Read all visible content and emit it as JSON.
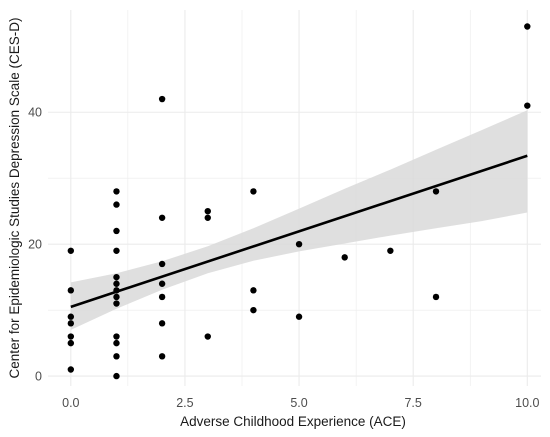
{
  "chart_data": {
    "type": "scatter",
    "xlabel": "Adverse Childhood Experience (ACE)",
    "ylabel": "Center for Epidemiologic Studies Depression Scale (CES-D)",
    "xlim": [
      -0.5,
      10.3
    ],
    "ylim": [
      -1.5,
      55.5
    ],
    "x_ticks": [
      0.0,
      2.5,
      5.0,
      7.5,
      10.0
    ],
    "x_tick_labels": [
      "0.0",
      "2.5",
      "5.0",
      "7.5",
      "10.0"
    ],
    "y_ticks": [
      0,
      20,
      40
    ],
    "y_tick_labels": [
      "0",
      "20",
      "40"
    ],
    "grid": true,
    "legend": "none",
    "points": [
      [
        0,
        19
      ],
      [
        0,
        13
      ],
      [
        0,
        9
      ],
      [
        0,
        8
      ],
      [
        0,
        6
      ],
      [
        0,
        5
      ],
      [
        0,
        1
      ],
      [
        1,
        28
      ],
      [
        1,
        26
      ],
      [
        1,
        22
      ],
      [
        1,
        19
      ],
      [
        1,
        15
      ],
      [
        1,
        14
      ],
      [
        1,
        13
      ],
      [
        1,
        12
      ],
      [
        1,
        11
      ],
      [
        1,
        6
      ],
      [
        1,
        5
      ],
      [
        1,
        3
      ],
      [
        1,
        0
      ],
      [
        2,
        42
      ],
      [
        2,
        24
      ],
      [
        2,
        17
      ],
      [
        2,
        14
      ],
      [
        2,
        12
      ],
      [
        2,
        8
      ],
      [
        2,
        3
      ],
      [
        3,
        25
      ],
      [
        3,
        24
      ],
      [
        3,
        6
      ],
      [
        4,
        28
      ],
      [
        4,
        13
      ],
      [
        4,
        10
      ],
      [
        5,
        20
      ],
      [
        5,
        9
      ],
      [
        6,
        18
      ],
      [
        7,
        19
      ],
      [
        8,
        28
      ],
      [
        8,
        12
      ],
      [
        10,
        53
      ],
      [
        10,
        41
      ]
    ],
    "trend_line": {
      "type": "linear",
      "x": [
        0,
        10
      ],
      "y": [
        10.5,
        33.4
      ]
    },
    "confidence_band": {
      "x": [
        0,
        1,
        2,
        3,
        4,
        5,
        6,
        7,
        8,
        9,
        10
      ],
      "lower": [
        7.0,
        10.2,
        13.1,
        15.6,
        17.5,
        18.9,
        20.1,
        21.3,
        22.4,
        23.5,
        24.8
      ],
      "upper": [
        14.2,
        15.6,
        17.4,
        19.7,
        22.4,
        25.4,
        28.4,
        31.3,
        34.3,
        37.3,
        40.3
      ]
    },
    "colors": {
      "point": "#000000",
      "line": "#000000",
      "band": "#d9d9d9",
      "grid": "#ebebeb"
    }
  }
}
